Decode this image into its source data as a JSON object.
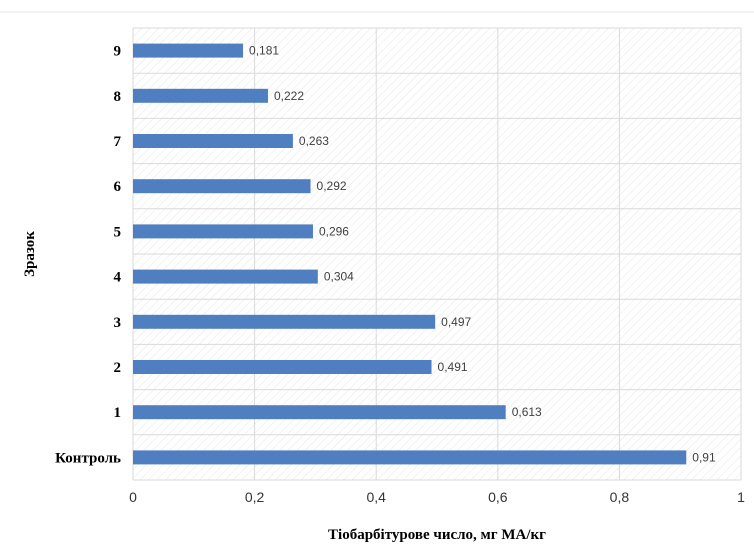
{
  "chart_data": {
    "type": "bar",
    "orientation": "horizontal",
    "categories": [
      "Контроль",
      "1",
      "2",
      "3",
      "4",
      "5",
      "6",
      "7",
      "8",
      "9"
    ],
    "values": [
      0.91,
      0.613,
      0.491,
      0.497,
      0.304,
      0.296,
      0.292,
      0.263,
      0.222,
      0.181
    ],
    "value_labels": [
      "0,91",
      "0,613",
      "0,491",
      "0,497",
      "0,304",
      "0,296",
      "0,292",
      "0,263",
      "0,222",
      "0,181"
    ],
    "xlabel": "Тіобарбітурове число, мг МА/кг",
    "ylabel": "Зразок",
    "xlim": [
      0,
      1
    ],
    "xticks": [
      "0",
      "0,2",
      "0,4",
      "0,6",
      "0,8",
      "1"
    ],
    "grid": true,
    "bar_color": "#4f7fc1",
    "grid_color": "#d9d9d9"
  }
}
